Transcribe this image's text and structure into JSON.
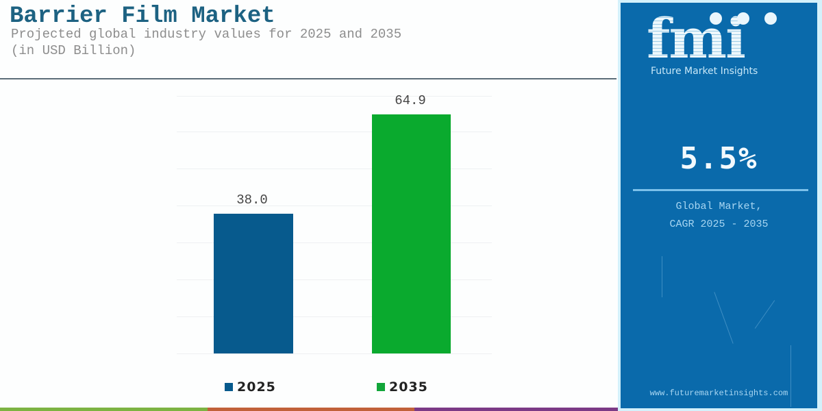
{
  "header": {
    "title": "Barrier Film Market",
    "subtitle_line1": "Projected global industry values for 2025 and 2035",
    "subtitle_line2": "(in USD Billion)"
  },
  "chart_data": {
    "type": "bar",
    "title": "Barrier Film Market",
    "subtitle": "Projected global industry values for 2025 and 2035 (in USD Billion)",
    "categories": [
      "2025",
      "2035"
    ],
    "values": [
      38.0,
      64.9
    ],
    "value_labels": [
      "38.0",
      "64.9"
    ],
    "colors": [
      "#075a8d",
      "#0aaa2e"
    ],
    "xlabel": "",
    "ylabel": "USD Billion",
    "ylim": [
      0,
      70
    ],
    "grid": true,
    "legend": {
      "position": "bottom",
      "entries": [
        "2025",
        "2035"
      ]
    }
  },
  "panel": {
    "brand_logo_text": "fmi",
    "brand_name": "Future Market Insights",
    "cagr_value": "5.5%",
    "cagr_caption": "Global Market,\nCAGR 2025 - 2035",
    "url": "www.futuremarketinsights.com",
    "background_color": "#0a6aab"
  },
  "footer_strip": {
    "colors": [
      "#7cb342",
      "#c1613a",
      "#7b3a86"
    ]
  }
}
